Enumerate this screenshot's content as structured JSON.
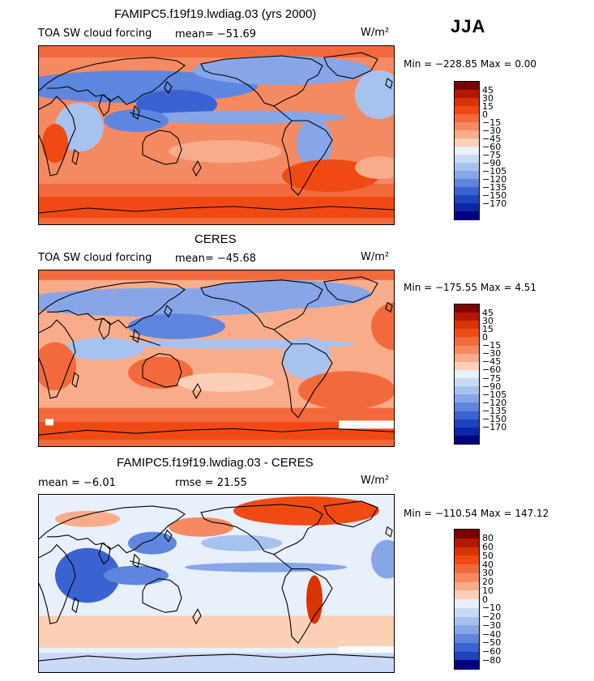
{
  "season": "JJA",
  "palette_sw": [
    "#7f0000",
    "#b21a00",
    "#d93300",
    "#f04a14",
    "#f26a3c",
    "#f58a62",
    "#f8ac8a",
    "#fcd0b6",
    "#e8f0fc",
    "#c9daf6",
    "#a8c2ef",
    "#86a6e8",
    "#5f86df",
    "#3a63d2",
    "#1e43c1",
    "#0d27a3",
    "#000080"
  ],
  "palette_diff": [
    "#7f0000",
    "#b21a00",
    "#d93300",
    "#f04a14",
    "#f26a3c",
    "#f58a62",
    "#f8ac8a",
    "#fcd0b6",
    "#e8f0fc",
    "#c9daf6",
    "#a8c2ef",
    "#86a6e8",
    "#5f86df",
    "#3a63d2",
    "#1e43c1",
    "#000080"
  ],
  "panels": [
    {
      "title": "FAMIPC5.f19f19.lwdiag.03 (yrs 2000)",
      "left_label": "TOA SW cloud forcing",
      "mid_label": "mean=  −51.69",
      "units": "W/m²",
      "minmax": "Min = −228.85  Max =    0.00"
    },
    {
      "title": "CERES",
      "left_label": "TOA SW cloud forcing",
      "mid_label": "mean=  −45.68",
      "units": "W/m²",
      "minmax": "Min = −175.55  Max =    4.51"
    },
    {
      "title": "FAMIPC5.f19f19.lwdiag.03 - CERES",
      "left_label": "mean =   −6.01",
      "mid_label": "rmse =   21.55",
      "units": "W/m²",
      "minmax": "Min = −110.54  Max = 147.12"
    }
  ],
  "chart_data": [
    {
      "type": "heatmap",
      "title": "FAMIPC5.f19f19.lwdiag.03 (yrs 2000)",
      "variable": "TOA SW cloud forcing",
      "units": "W/m²",
      "mean": -51.69,
      "min": -228.85,
      "max": 0.0,
      "colorbar_levels": [
        "45",
        "30",
        "15",
        "0",
        "−15",
        "−30",
        "−45",
        "−60",
        "−75",
        "−90",
        "−105",
        "−120",
        "−135",
        "−150",
        "−170"
      ]
    },
    {
      "type": "heatmap",
      "title": "CERES",
      "variable": "TOA SW cloud forcing",
      "units": "W/m²",
      "mean": -45.68,
      "min": -175.55,
      "max": 4.51,
      "colorbar_levels": [
        "45",
        "30",
        "15",
        "0",
        "−15",
        "−30",
        "−45",
        "−60",
        "−75",
        "−90",
        "−105",
        "−120",
        "−135",
        "−150",
        "−170"
      ]
    },
    {
      "type": "heatmap",
      "title": "FAMIPC5.f19f19.lwdiag.03 - CERES",
      "units": "W/m²",
      "mean": -6.01,
      "rmse": 21.55,
      "min": -110.54,
      "max": 147.12,
      "colorbar_levels": [
        "80",
        "60",
        "50",
        "40",
        "30",
        "20",
        "10",
        "0",
        "−10",
        "−20",
        "−30",
        "−40",
        "−50",
        "−60",
        "−80"
      ]
    }
  ]
}
